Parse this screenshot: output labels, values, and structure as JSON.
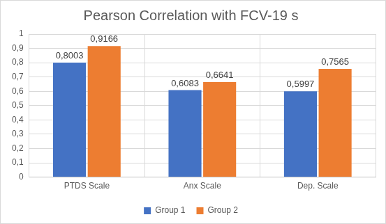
{
  "chart_data": {
    "type": "bar",
    "title": "Pearson Correlation with FCV-19 s",
    "categories": [
      "PTDS Scale",
      "Anx Scale",
      "Dep. Scale"
    ],
    "series": [
      {
        "name": "Group 1",
        "color": "#4472c4",
        "values": [
          0.8003,
          0.6083,
          0.5997
        ],
        "value_labels": [
          "0,8003",
          "0,6083",
          "0,5997"
        ]
      },
      {
        "name": "Group 2",
        "color": "#ed7d31",
        "values": [
          0.9166,
          0.6641,
          0.7565
        ],
        "value_labels": [
          "0,9166",
          "0,6641",
          "0,7565"
        ]
      }
    ],
    "ylim": [
      0,
      1
    ],
    "yticks": [
      0,
      {
        "value": 0.1,
        "label": "0,1"
      },
      {
        "value": 0.2,
        "label": "0,2"
      },
      {
        "value": 0.3,
        "label": "0,3"
      },
      {
        "value": 0.4,
        "label": "0,4"
      },
      {
        "value": 0.5,
        "label": "0,5"
      },
      {
        "value": 0.6,
        "label": "0,6"
      },
      {
        "value": 0.7,
        "label": "0,7"
      },
      {
        "value": 0.8,
        "label": "0,8"
      },
      {
        "value": 0.9,
        "label": "0,9"
      },
      1
    ],
    "grid": true,
    "legend": "bottom",
    "data_labels": true
  }
}
